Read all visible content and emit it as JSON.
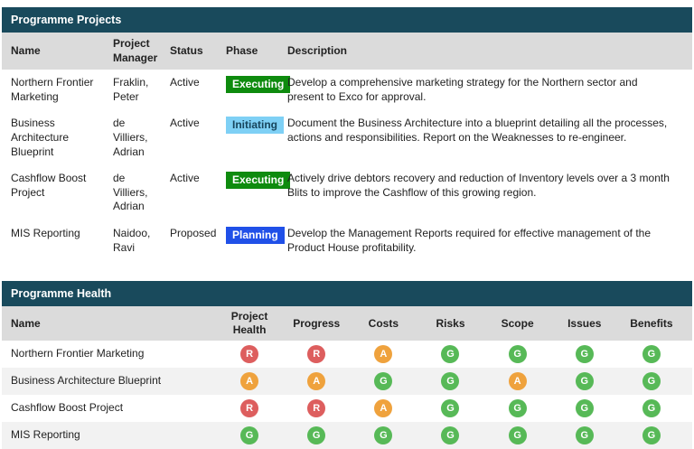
{
  "colors": {
    "header_bar_bg": "#194a5c",
    "column_header_bg": "#dbdbdb",
    "row_stripe_bg": "#f2f2f2",
    "phase": {
      "Executing": {
        "bg": "#0e8b0e",
        "text": "#ffffff"
      },
      "Initiating": {
        "bg": "#7ed0f5",
        "text": "#17455c"
      },
      "Planning": {
        "bg": "#2050e8",
        "text": "#ffffff"
      }
    },
    "health": {
      "R": "#dd5e5e",
      "A": "#efa23d",
      "G": "#57b957"
    }
  },
  "programme_projects": {
    "title": "Programme Projects",
    "columns": [
      "Name",
      "Project Manager",
      "Status",
      "Phase",
      "Description"
    ],
    "rows": [
      {
        "name": "Northern Frontier Marketing",
        "manager": "Fraklin, Peter",
        "status": "Active",
        "phase": "Executing",
        "description": "Develop a comprehensive marketing strategy for the Northern sector and present to Exco for approval."
      },
      {
        "name": "Business Architecture Blueprint",
        "manager": "de Villiers, Adrian",
        "status": "Active",
        "phase": "Initiating",
        "description": "Document the Business Architecture into a blueprint detailing all the processes, actions and responsibilities. Report on the Weaknesses to re-engineer."
      },
      {
        "name": "Cashflow Boost Project",
        "manager": "de Villiers, Adrian",
        "status": "Active",
        "phase": "Executing",
        "description": "Actively drive debtors recovery and reduction of Inventory levels over a 3 month Blits to improve the Cashflow of this growing region."
      },
      {
        "name": "MIS Reporting",
        "manager": "Naidoo, Ravi",
        "status": "Proposed",
        "phase": "Planning",
        "description": "Develop the Management Reports required for effective management of the Product House profitability."
      }
    ]
  },
  "programme_health": {
    "title": "Programme Health",
    "columns": [
      "Name",
      "Project Health",
      "Progress",
      "Costs",
      "Risks",
      "Scope",
      "Issues",
      "Benefits"
    ],
    "rows": [
      {
        "name": "Northern Frontier Marketing",
        "indicators": [
          "R",
          "R",
          "A",
          "G",
          "G",
          "G",
          "G"
        ]
      },
      {
        "name": "Business Architecture Blueprint",
        "indicators": [
          "A",
          "A",
          "G",
          "G",
          "A",
          "G",
          "G"
        ]
      },
      {
        "name": "Cashflow Boost Project",
        "indicators": [
          "R",
          "R",
          "A",
          "G",
          "G",
          "G",
          "G"
        ]
      },
      {
        "name": "MIS Reporting",
        "indicators": [
          "G",
          "G",
          "G",
          "G",
          "G",
          "G",
          "G"
        ]
      }
    ]
  }
}
